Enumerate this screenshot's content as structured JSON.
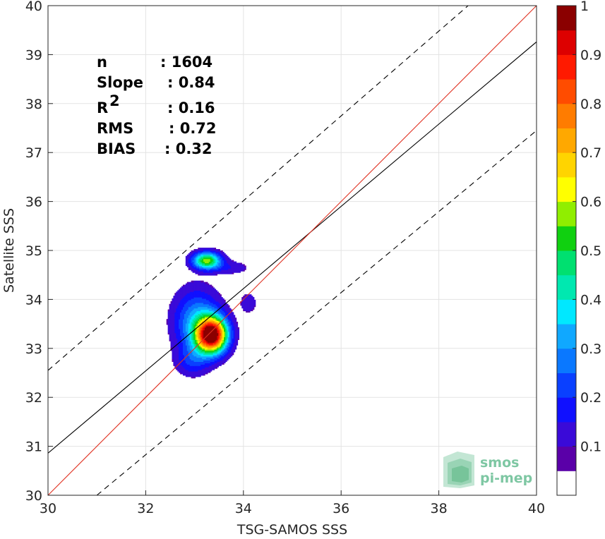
{
  "chart_data": {
    "type": "heatmap",
    "xlabel": "TSG-SAMOS SSS",
    "ylabel": "Satellite SSS",
    "xlim": [
      30,
      40
    ],
    "ylim": [
      30,
      40
    ],
    "x_ticks": [
      "30",
      "32",
      "34",
      "36",
      "38",
      "40"
    ],
    "y_ticks": [
      "30",
      "31",
      "32",
      "33",
      "34",
      "35",
      "36",
      "37",
      "38",
      "39",
      "40"
    ],
    "grid": true,
    "stats": [
      {
        "label": "n",
        "value": ": 1604"
      },
      {
        "label": "Slope",
        "value": ": 0.84"
      },
      {
        "label": "R",
        "sup": "2",
        "value": ": 0.16"
      },
      {
        "label": "RMS",
        "value": ": 0.72"
      },
      {
        "label": "BIAS",
        "value": ": 0.32"
      }
    ],
    "lines": {
      "identity": {
        "color": "#e03020",
        "points": [
          [
            30,
            30
          ],
          [
            40,
            40
          ]
        ]
      },
      "regression": {
        "color": "#000000",
        "points": [
          [
            30,
            30.86
          ],
          [
            40,
            39.26
          ]
        ]
      },
      "upper_bound": {
        "style": "dashed",
        "points": [
          [
            30,
            32.55
          ],
          [
            38.6,
            40
          ]
        ]
      },
      "lower_bound": {
        "style": "dashed",
        "points": [
          [
            31.0,
            30
          ],
          [
            40,
            37.45
          ]
        ]
      }
    },
    "density": {
      "clusters": [
        {
          "cx": 33.35,
          "cy": 33.28,
          "sx": 0.22,
          "sy": 0.25,
          "amp": 1.0
        },
        {
          "cx": 33.05,
          "cy": 33.55,
          "sx": 0.33,
          "sy": 0.45,
          "amp": 0.28
        },
        {
          "cx": 32.95,
          "cy": 32.75,
          "sx": 0.24,
          "sy": 0.22,
          "amp": 0.13
        },
        {
          "cx": 33.25,
          "cy": 34.8,
          "sx": 0.2,
          "sy": 0.12,
          "amp": 0.55
        },
        {
          "cx": 33.75,
          "cy": 34.65,
          "sx": 0.28,
          "sy": 0.1,
          "amp": 0.09
        },
        {
          "cx": 34.1,
          "cy": 33.93,
          "sx": 0.12,
          "sy": 0.15,
          "amp": 0.1
        }
      ],
      "threshold": 0.05
    },
    "colorbar": {
      "min": 0,
      "max": 1,
      "tick_labels": [
        "0.1",
        "0.2",
        "0.3",
        "0.4",
        "0.5",
        "0.6",
        "0.7",
        "0.8",
        "0.9",
        "1"
      ],
      "colors": [
        "#ffffff",
        "#5a00a8",
        "#3a0ad8",
        "#1010ff",
        "#0a40ff",
        "#0a78ff",
        "#10a8ff",
        "#00e8ff",
        "#00e8b0",
        "#00e070",
        "#10d010",
        "#90ee00",
        "#ffff00",
        "#ffd400",
        "#ffa800",
        "#ff7c00",
        "#ff4c00",
        "#ff1a00",
        "#dd0000",
        "#8b0000"
      ]
    }
  },
  "logo": {
    "line1": "smos",
    "line2": "pi-mep"
  }
}
